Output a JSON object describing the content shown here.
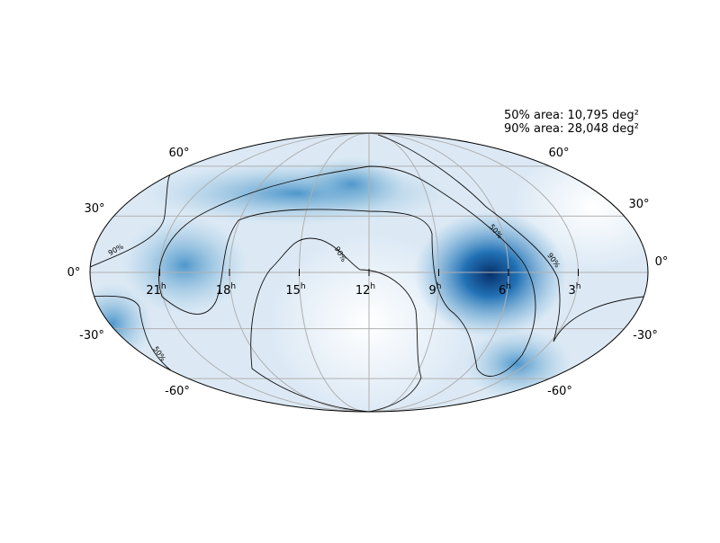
{
  "annotations": {
    "area_50": "50% area: 10,795 deg²",
    "area_90": "90% area: 28,048 deg²"
  },
  "ra_labels": [
    {
      "hour": "21",
      "unit": "h"
    },
    {
      "hour": "18",
      "unit": "h"
    },
    {
      "hour": "15",
      "unit": "h"
    },
    {
      "hour": "12",
      "unit": "h"
    },
    {
      "hour": "9",
      "unit": "h"
    },
    {
      "hour": "6",
      "unit": "h"
    },
    {
      "hour": "3",
      "unit": "h"
    }
  ],
  "dec_labels_left": [
    "60°",
    "30°",
    "0°",
    "-30°",
    "-60°"
  ],
  "dec_labels_right": [
    "60°",
    "30°",
    "0°",
    "-30°",
    "-60°"
  ],
  "contour_labels": [
    "90%",
    "90%",
    "90%",
    "50%",
    "50%"
  ]
}
